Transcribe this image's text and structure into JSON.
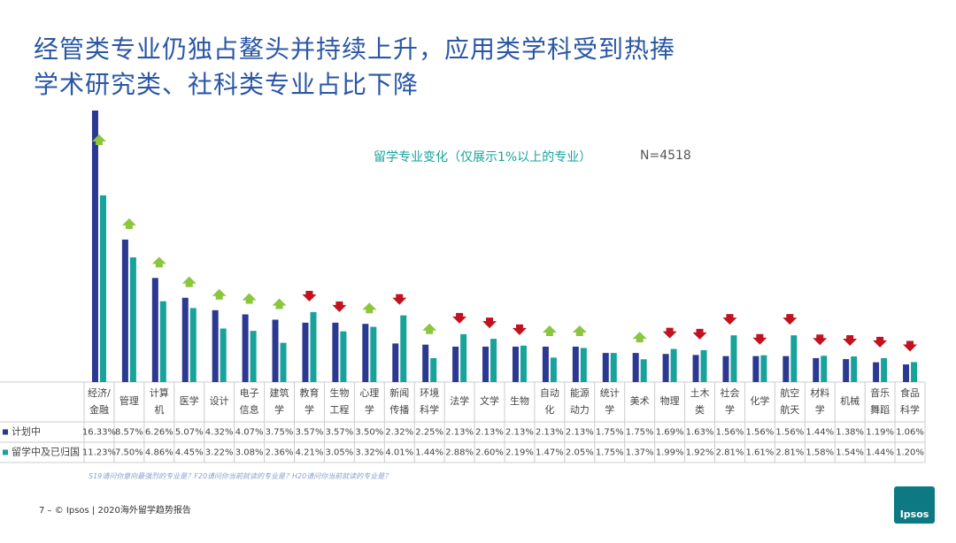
{
  "chart_data": {
    "type": "bar",
    "title": "经管类专业仍独占鳌头并持续上升，应用类学科受到热捧",
    "subtitle": "学术研究类、社科类专业占比下降",
    "annotation": "留学专业变化（仅展示1%以上的专业）",
    "sample_size": "N=4518",
    "categories": [
      "经济/金融",
      "管理",
      "计算机",
      "医学",
      "设计",
      "电子信息",
      "建筑学",
      "教育学",
      "生物工程",
      "心理学",
      "新闻传播",
      "环境科学",
      "法学",
      "文学",
      "生物",
      "自动化",
      "能源动力",
      "统计学",
      "美术",
      "物理",
      "土木类",
      "社会学",
      "化学",
      "航空航天",
      "材料学",
      "机械",
      "音乐舞蹈",
      "食品科学"
    ],
    "series": [
      {
        "name": "计划中",
        "color": "#2b3990",
        "values": [
          16.33,
          8.57,
          6.26,
          5.07,
          4.32,
          4.07,
          3.75,
          3.57,
          3.57,
          3.5,
          2.32,
          2.25,
          2.13,
          2.13,
          2.13,
          2.13,
          2.13,
          1.75,
          1.75,
          1.69,
          1.63,
          1.56,
          1.56,
          1.56,
          1.44,
          1.38,
          1.19,
          1.06
        ],
        "value_labels": [
          "16.33%",
          "8.57%",
          "6.26%",
          "5.07%",
          "4.32%",
          "4.07%",
          "3.75%",
          "3.57%",
          "3.57%",
          "3.50%",
          "2.32%",
          "2.25%",
          "2.13%",
          "2.13%",
          "2.13%",
          "2.13%",
          "2.13%",
          "1.75%",
          "1.75%",
          "1.69%",
          "1.63%",
          "1.56%",
          "1.56%",
          "1.56%",
          "1.44%",
          "1.38%",
          "1.19%",
          "1.06%"
        ]
      },
      {
        "name": "留学中及已归国",
        "color": "#17a39a",
        "values": [
          11.23,
          7.5,
          4.86,
          4.45,
          3.22,
          3.08,
          2.36,
          4.21,
          3.05,
          3.32,
          4.01,
          1.44,
          2.88,
          2.6,
          2.19,
          1.47,
          2.05,
          1.75,
          1.37,
          1.99,
          1.92,
          2.81,
          1.61,
          2.81,
          1.58,
          1.54,
          1.44,
          1.2
        ],
        "value_labels": [
          "11.23%",
          "7.50%",
          "4.86%",
          "4.45%",
          "3.22%",
          "3.08%",
          "2.36%",
          "4.21%",
          "3.05%",
          "3.32%",
          "4.01%",
          "1.44%",
          "2.88%",
          "2.60%",
          "2.19%",
          "1.47%",
          "2.05%",
          "1.75%",
          "1.37%",
          "1.99%",
          "1.92%",
          "2.81%",
          "1.61%",
          "2.81%",
          "1.58%",
          "1.54%",
          "1.44%",
          "1.20%"
        ]
      }
    ],
    "trend": [
      "up",
      "up",
      "up",
      "up",
      "up",
      "up",
      "up",
      "down",
      "down",
      "up",
      "down",
      "up",
      "down",
      "down",
      "down",
      "up",
      "up",
      null,
      "up",
      "down",
      "down",
      "down",
      "down",
      "down",
      "down",
      "down",
      "down",
      "down"
    ],
    "trend_colors": {
      "up": "#8cc63f",
      "down": "#c1121f"
    },
    "footnote": "S19请问你意向最强烈的专业是？F20请问你当前就读的专业是？H20请问你当前就读的专业是？",
    "footer": "7 – © Ipsos | 2020海外留学趋势报告",
    "logo": "Ipsos"
  }
}
